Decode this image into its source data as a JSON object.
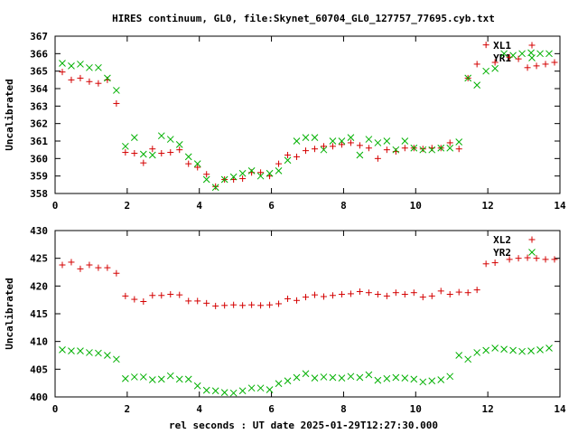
{
  "title": "HIRES continuum, GL0, file:Skynet_60704_GL0_127757_77695.cyb.txt",
  "xlabel": "rel seconds : UT date 2025-01-29T12:27:30.000",
  "colors": {
    "series1": "#d40000",
    "series2": "#00b000",
    "axis": "#000000"
  },
  "chart_data": [
    {
      "type": "scatter",
      "ylabel": "Uncalibrated",
      "xlim": [
        0,
        14
      ],
      "ylim": [
        358,
        367
      ],
      "xticks": [
        0,
        2,
        4,
        6,
        8,
        10,
        12,
        14
      ],
      "yticks": [
        358,
        359,
        360,
        361,
        362,
        363,
        364,
        365,
        366,
        367
      ],
      "legend_position": "top-right",
      "series": [
        {
          "name": "XL1",
          "marker": "plus",
          "color": "#d40000",
          "x": [
            0.2,
            0.45,
            0.7,
            0.95,
            1.2,
            1.45,
            1.7,
            1.95,
            2.2,
            2.45,
            2.7,
            2.95,
            3.2,
            3.45,
            3.7,
            3.95,
            4.2,
            4.45,
            4.7,
            4.95,
            5.2,
            5.45,
            5.7,
            5.95,
            6.2,
            6.45,
            6.7,
            6.95,
            7.2,
            7.45,
            7.7,
            7.95,
            8.2,
            8.45,
            8.7,
            8.95,
            9.2,
            9.45,
            9.7,
            9.95,
            10.2,
            10.45,
            10.7,
            10.95,
            11.2,
            11.45,
            11.7,
            11.95,
            12.2,
            12.6,
            12.85,
            13.1,
            13.35,
            13.6,
            13.85
          ],
          "y": [
            364.95,
            364.5,
            364.6,
            364.4,
            364.3,
            364.5,
            363.15,
            360.35,
            360.3,
            359.75,
            360.55,
            360.3,
            360.35,
            360.5,
            359.7,
            359.5,
            359.1,
            358.4,
            358.8,
            358.8,
            358.85,
            359.2,
            359.2,
            359.0,
            359.7,
            360.2,
            360.1,
            360.45,
            360.55,
            360.7,
            360.7,
            360.8,
            360.9,
            360.75,
            360.6,
            360.0,
            360.5,
            360.4,
            360.6,
            360.6,
            360.55,
            360.6,
            360.6,
            360.9,
            360.55,
            364.6,
            365.4,
            366.5,
            365.5,
            365.8,
            365.7,
            365.2,
            365.3,
            365.4,
            365.5
          ],
          "y_note": ""
        },
        {
          "name": "YR1",
          "marker": "cross",
          "color": "#00b000",
          "x": [
            0.2,
            0.45,
            0.7,
            0.95,
            1.2,
            1.45,
            1.7,
            1.95,
            2.2,
            2.45,
            2.7,
            2.95,
            3.2,
            3.45,
            3.7,
            3.95,
            4.2,
            4.45,
            4.7,
            4.95,
            5.2,
            5.45,
            5.7,
            5.95,
            6.2,
            6.45,
            6.7,
            6.95,
            7.2,
            7.45,
            7.7,
            7.95,
            8.2,
            8.45,
            8.7,
            8.95,
            9.2,
            9.45,
            9.7,
            9.95,
            10.2,
            10.45,
            10.7,
            10.95,
            11.2,
            11.45,
            11.7,
            11.95,
            12.2,
            12.45,
            12.7,
            12.95,
            13.2,
            13.45,
            13.7
          ],
          "y": [
            365.45,
            365.3,
            365.4,
            365.2,
            365.2,
            364.6,
            363.9,
            360.7,
            361.2,
            360.25,
            360.2,
            361.3,
            361.1,
            360.8,
            360.1,
            359.7,
            358.8,
            358.35,
            358.8,
            358.95,
            359.15,
            359.3,
            359.0,
            359.15,
            359.3,
            359.9,
            361.0,
            361.2,
            361.2,
            360.5,
            361.0,
            361.0,
            361.2,
            360.2,
            361.1,
            360.9,
            361.0,
            360.5,
            361.0,
            360.6,
            360.5,
            360.5,
            360.6,
            360.6,
            360.95,
            364.6,
            364.2,
            365.0,
            365.15,
            366.0,
            365.9,
            366.0,
            366.05,
            366.0,
            366.0
          ]
        }
      ]
    },
    {
      "type": "scatter",
      "ylabel": "Uncalibrated",
      "xlim": [
        0,
        14
      ],
      "ylim": [
        400,
        430
      ],
      "xticks": [
        0,
        2,
        4,
        6,
        8,
        10,
        12,
        14
      ],
      "yticks": [
        400,
        405,
        410,
        415,
        420,
        425,
        430
      ],
      "legend_position": "top-right",
      "series": [
        {
          "name": "XL2",
          "marker": "plus",
          "color": "#d40000",
          "x": [
            0.2,
            0.45,
            0.7,
            0.95,
            1.2,
            1.45,
            1.7,
            1.95,
            2.2,
            2.45,
            2.7,
            2.95,
            3.2,
            3.45,
            3.7,
            3.95,
            4.2,
            4.45,
            4.7,
            4.95,
            5.2,
            5.45,
            5.7,
            5.95,
            6.2,
            6.45,
            6.7,
            6.95,
            7.2,
            7.45,
            7.7,
            7.95,
            8.2,
            8.45,
            8.7,
            8.95,
            9.2,
            9.45,
            9.7,
            9.95,
            10.2,
            10.45,
            10.7,
            10.95,
            11.2,
            11.45,
            11.7,
            11.95,
            12.2,
            12.6,
            12.85,
            13.1,
            13.35,
            13.6,
            13.85
          ],
          "y": [
            423.8,
            424.3,
            423.1,
            423.8,
            423.3,
            423.3,
            422.3,
            418.2,
            417.6,
            417.2,
            418.3,
            418.3,
            418.5,
            418.4,
            417.3,
            417.3,
            416.9,
            416.4,
            416.5,
            416.6,
            416.5,
            416.6,
            416.5,
            416.6,
            416.8,
            417.7,
            417.4,
            418.0,
            418.4,
            418.1,
            418.3,
            418.5,
            418.6,
            419.0,
            418.8,
            418.5,
            418.2,
            418.8,
            418.5,
            418.8,
            418.0,
            418.2,
            419.1,
            418.5,
            418.9,
            418.8,
            419.3,
            424.0,
            424.2,
            424.8,
            425.0,
            425.1,
            425.0,
            424.8,
            424.8
          ]
        },
        {
          "name": "YR2",
          "marker": "cross",
          "color": "#00b000",
          "x": [
            0.2,
            0.45,
            0.7,
            0.95,
            1.2,
            1.45,
            1.7,
            1.95,
            2.2,
            2.45,
            2.7,
            2.95,
            3.2,
            3.45,
            3.7,
            3.95,
            4.2,
            4.45,
            4.7,
            4.95,
            5.2,
            5.45,
            5.7,
            5.95,
            6.2,
            6.45,
            6.7,
            6.95,
            7.2,
            7.45,
            7.7,
            7.95,
            8.2,
            8.45,
            8.7,
            8.95,
            9.2,
            9.45,
            9.7,
            9.95,
            10.2,
            10.45,
            10.7,
            10.95,
            11.2,
            11.45,
            11.7,
            11.95,
            12.2,
            12.45,
            12.7,
            12.95,
            13.2,
            13.45,
            13.7
          ],
          "y": [
            408.5,
            408.3,
            408.3,
            408.0,
            407.9,
            407.5,
            406.8,
            403.3,
            403.6,
            403.6,
            403.1,
            403.2,
            403.8,
            403.2,
            403.2,
            402.0,
            401.2,
            401.1,
            400.8,
            400.7,
            401.1,
            401.6,
            401.6,
            401.3,
            402.4,
            402.9,
            403.5,
            404.2,
            403.4,
            403.6,
            403.5,
            403.4,
            403.7,
            403.5,
            404.0,
            403.0,
            403.3,
            403.5,
            403.4,
            403.2,
            402.7,
            402.9,
            403.1,
            403.7,
            407.5,
            406.8,
            408.0,
            408.4,
            408.8,
            408.6,
            408.4,
            408.2,
            408.3,
            408.5,
            408.8
          ]
        }
      ]
    }
  ]
}
